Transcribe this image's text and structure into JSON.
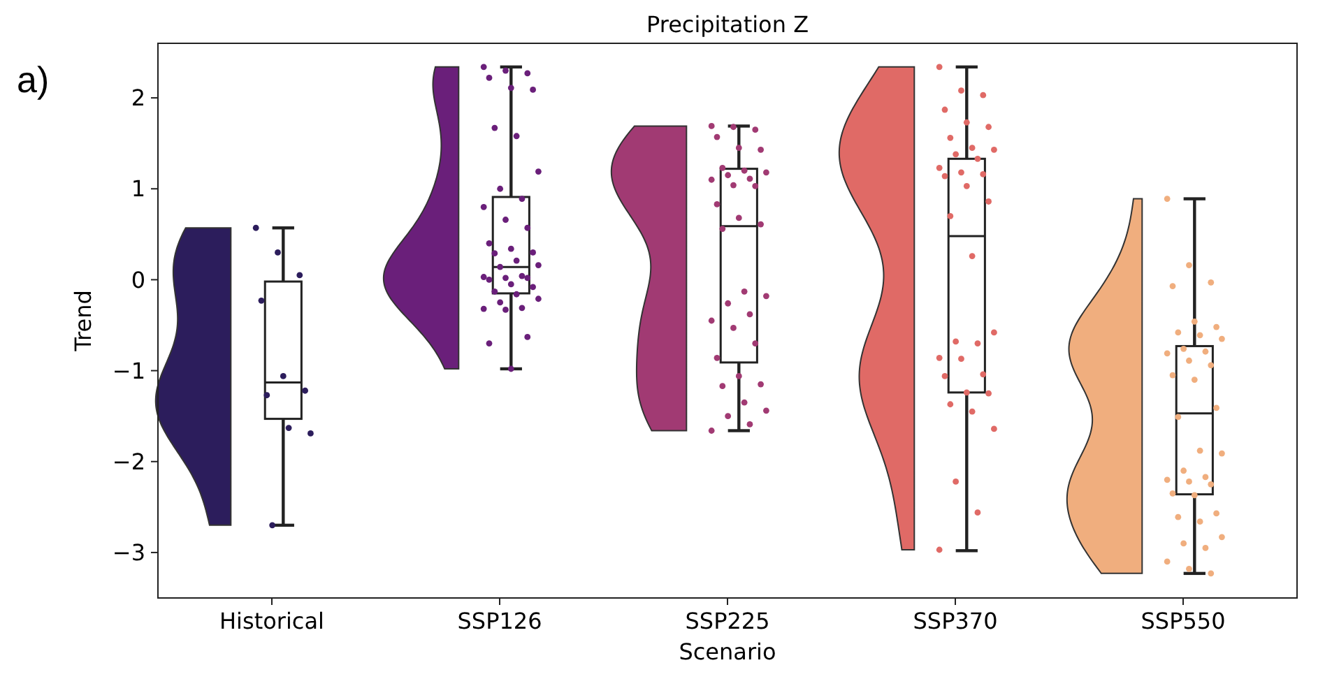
{
  "chart_data": {
    "type": "box",
    "title": "Precipitation Z",
    "xlabel": "Scenario",
    "ylabel": "Trend",
    "annotations": [
      "a)"
    ],
    "categories": [
      "Historical",
      "SSP126",
      "SSP225",
      "SSP370",
      "SSP550"
    ],
    "boxes": [
      {
        "low": -2.7,
        "q1": -1.53,
        "median": -1.13,
        "q3": -0.02,
        "high": 0.57
      },
      {
        "low": -0.98,
        "q1": -0.15,
        "median": 0.14,
        "q3": 0.91,
        "high": 2.34
      },
      {
        "low": -1.66,
        "q1": -0.91,
        "median": 0.59,
        "q3": 1.22,
        "high": 1.69
      },
      {
        "low": -2.98,
        "q1": -1.24,
        "median": 0.48,
        "q3": 1.33,
        "high": 2.34
      },
      {
        "low": -3.23,
        "q1": -2.36,
        "median": -1.47,
        "q3": -0.73,
        "high": 0.89
      }
    ],
    "series": [
      {
        "type": "scatter",
        "color": "#2c1d5c",
        "x": [
          "Historical",
          "Historical",
          "Historical",
          "Historical",
          "Historical",
          "Historical",
          "Historical",
          "Historical",
          "Historical",
          "Historical"
        ],
        "values": [
          0.57,
          0.3,
          0.05,
          -0.23,
          -1.06,
          -1.22,
          -1.27,
          -1.63,
          -1.69,
          -2.7
        ]
      },
      {
        "type": "scatter",
        "color": "#6a1f7a",
        "x": [
          "SSP126",
          "SSP126",
          "SSP126",
          "SSP126",
          "SSP126",
          "SSP126",
          "SSP126",
          "SSP126",
          "SSP126",
          "SSP126",
          "SSP126",
          "SSP126",
          "SSP126",
          "SSP126",
          "SSP126",
          "SSP126",
          "SSP126",
          "SSP126",
          "SSP126",
          "SSP126",
          "SSP126",
          "SSP126",
          "SSP126",
          "SSP126",
          "SSP126",
          "SSP126",
          "SSP126",
          "SSP126",
          "SSP126",
          "SSP126",
          "SSP126",
          "SSP126",
          "SSP126",
          "SSP126",
          "SSP126",
          "SSP126",
          "SSP126",
          "SSP126"
        ],
        "values": [
          2.34,
          2.3,
          2.27,
          2.22,
          2.11,
          2.09,
          1.67,
          1.58,
          1.19,
          1.0,
          0.89,
          0.8,
          0.66,
          0.57,
          0.4,
          0.34,
          0.3,
          0.29,
          0.21,
          0.16,
          0.14,
          0.04,
          0.03,
          0.02,
          0.02,
          0.0,
          -0.05,
          -0.08,
          -0.13,
          -0.16,
          -0.21,
          -0.25,
          -0.31,
          -0.32,
          -0.33,
          -0.63,
          -0.7,
          -0.98
        ]
      },
      {
        "type": "scatter",
        "color": "#a13a73",
        "x": [
          "SSP225",
          "SSP225",
          "SSP225",
          "SSP225",
          "SSP225",
          "SSP225",
          "SSP225",
          "SSP225",
          "SSP225",
          "SSP225",
          "SSP225",
          "SSP225",
          "SSP225",
          "SSP225",
          "SSP225",
          "SSP225",
          "SSP225",
          "SSP225",
          "SSP225",
          "SSP225",
          "SSP225",
          "SSP225",
          "SSP225",
          "SSP225",
          "SSP225",
          "SSP225",
          "SSP225",
          "SSP225",
          "SSP225",
          "SSP225",
          "SSP225",
          "SSP225",
          "SSP225",
          "SSP225"
        ],
        "values": [
          1.69,
          1.68,
          1.65,
          1.57,
          1.45,
          1.43,
          1.23,
          1.2,
          1.18,
          1.15,
          1.11,
          1.1,
          1.04,
          1.03,
          0.83,
          0.68,
          0.61,
          0.56,
          -0.13,
          -0.18,
          -0.26,
          -0.38,
          -0.45,
          -0.53,
          -0.7,
          -0.86,
          -1.06,
          -1.15,
          -1.17,
          -1.35,
          -1.44,
          -1.5,
          -1.59,
          -1.66
        ]
      },
      {
        "type": "scatter",
        "color": "#e06a66",
        "x": [
          "SSP370",
          "SSP370",
          "SSP370",
          "SSP370",
          "SSP370",
          "SSP370",
          "SSP370",
          "SSP370",
          "SSP370",
          "SSP370",
          "SSP370",
          "SSP370",
          "SSP370",
          "SSP370",
          "SSP370",
          "SSP370",
          "SSP370",
          "SSP370",
          "SSP370",
          "SSP370",
          "SSP370",
          "SSP370",
          "SSP370",
          "SSP370",
          "SSP370",
          "SSP370",
          "SSP370",
          "SSP370",
          "SSP370",
          "SSP370",
          "SSP370",
          "SSP370",
          "SSP370",
          "SSP370"
        ],
        "values": [
          2.34,
          2.08,
          2.03,
          1.87,
          1.73,
          1.68,
          1.56,
          1.45,
          1.43,
          1.38,
          1.33,
          1.23,
          1.18,
          1.16,
          1.14,
          1.03,
          0.86,
          0.7,
          0.26,
          -0.58,
          -0.68,
          -0.7,
          -0.86,
          -0.87,
          -1.04,
          -1.06,
          -1.24,
          -1.25,
          -1.37,
          -1.45,
          -1.64,
          -2.22,
          -2.56,
          -2.97
        ]
      },
      {
        "type": "scatter",
        "color": "#f0ae7e",
        "x": [
          "SSP550",
          "SSP550",
          "SSP550",
          "SSP550",
          "SSP550",
          "SSP550",
          "SSP550",
          "SSP550",
          "SSP550",
          "SSP550",
          "SSP550",
          "SSP550",
          "SSP550",
          "SSP550",
          "SSP550",
          "SSP550",
          "SSP550",
          "SSP550",
          "SSP550",
          "SSP550",
          "SSP550",
          "SSP550",
          "SSP550",
          "SSP550",
          "SSP550",
          "SSP550",
          "SSP550",
          "SSP550",
          "SSP550",
          "SSP550",
          "SSP550",
          "SSP550",
          "SSP550",
          "SSP550",
          "SSP550",
          "SSP550"
        ],
        "values": [
          0.89,
          0.16,
          -0.03,
          -0.07,
          -0.46,
          -0.52,
          -0.58,
          -0.61,
          -0.65,
          -0.76,
          -0.79,
          -0.81,
          -0.89,
          -0.94,
          -1.05,
          -1.1,
          -1.41,
          -1.51,
          -1.88,
          -1.91,
          -2.1,
          -2.17,
          -2.2,
          -2.22,
          -2.25,
          -2.35,
          -2.37,
          -2.57,
          -2.61,
          -2.66,
          -2.83,
          -2.9,
          -2.95,
          -3.1,
          -3.18,
          -3.23
        ]
      }
    ],
    "ylim": [
      -3.5,
      2.6
    ],
    "yticks": [
      {
        "value": -3,
        "label": "−3"
      },
      {
        "value": -2,
        "label": "−2"
      },
      {
        "value": -1,
        "label": "−1"
      },
      0,
      1,
      2
    ],
    "grid": false,
    "marker": "circle"
  }
}
